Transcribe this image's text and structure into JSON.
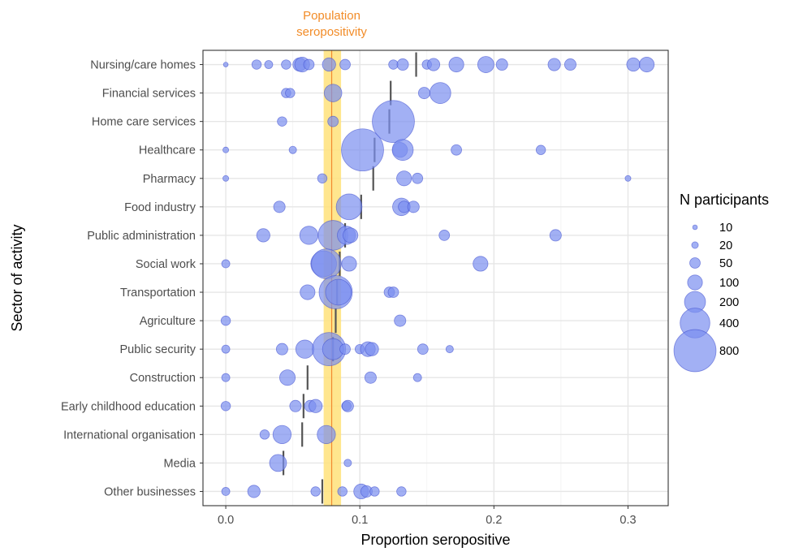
{
  "chart_data": {
    "type": "scatter",
    "annotation": "Population\nseropositivity",
    "xlabel": "Proportion seropositive",
    "ylabel": "Sector of activity",
    "xlim": [
      -0.017,
      0.33
    ],
    "x_ticks": [
      0.0,
      0.1,
      0.2,
      0.3
    ],
    "x_tick_labels": [
      "0.0",
      "0.1",
      "0.2",
      "0.3"
    ],
    "grid": true,
    "population_seropositivity": {
      "value": 0.079,
      "ci": [
        0.073,
        0.086
      ]
    },
    "categories": [
      "Nursing/care homes",
      "Financial services",
      "Home care services",
      "Healthcare",
      "Pharmacy",
      "Food industry",
      "Public administration",
      "Social work",
      "Transportation",
      "Agriculture",
      "Public security",
      "Construction",
      "Early childhood education",
      "International organisation",
      "Media",
      "Other businesses"
    ],
    "sector_means": [
      0.142,
      0.123,
      0.122,
      0.111,
      0.11,
      0.101,
      0.089,
      0.085,
      0.083,
      0.082,
      0.08,
      0.061,
      0.058,
      0.057,
      0.043,
      0.072
    ],
    "points": [
      [
        [
          0,
          10
        ],
        [
          0.023,
          40
        ],
        [
          0.032,
          30
        ],
        [
          0.045,
          40
        ],
        [
          0.055,
          80
        ],
        [
          0.057,
          100
        ],
        [
          0.062,
          50
        ],
        [
          0.077,
          80
        ],
        [
          0.089,
          50
        ],
        [
          0.125,
          40
        ],
        [
          0.132,
          60
        ],
        [
          0.15,
          40
        ],
        [
          0.155,
          70
        ],
        [
          0.172,
          100
        ],
        [
          0.194,
          120
        ],
        [
          0.206,
          60
        ],
        [
          0.245,
          70
        ],
        [
          0.257,
          60
        ],
        [
          0.304,
          80
        ],
        [
          0.314,
          100
        ]
      ],
      [
        [
          0.045,
          40
        ],
        [
          0.048,
          40
        ],
        [
          0.08,
          140
        ],
        [
          0.148,
          60
        ],
        [
          0.16,
          200
        ]
      ],
      [
        [
          0.042,
          40
        ],
        [
          0.08,
          50
        ],
        [
          0.125,
          800
        ]
      ],
      [
        [
          0,
          15
        ],
        [
          0.05,
          25
        ],
        [
          0.102,
          800
        ],
        [
          0.13,
          100
        ],
        [
          0.132,
          200
        ],
        [
          0.172,
          50
        ],
        [
          0.235,
          40
        ]
      ],
      [
        [
          0,
          15
        ],
        [
          0.072,
          40
        ],
        [
          0.133,
          100
        ],
        [
          0.143,
          50
        ],
        [
          0.3,
          15
        ]
      ],
      [
        [
          0.04,
          60
        ],
        [
          0.092,
          300
        ],
        [
          0.131,
          140
        ],
        [
          0.133,
          60
        ],
        [
          0.14,
          60
        ]
      ],
      [
        [
          0.028,
          80
        ],
        [
          0.062,
          150
        ],
        [
          0.08,
          400
        ],
        [
          0.09,
          150
        ],
        [
          0.093,
          100
        ],
        [
          0.163,
          50
        ],
        [
          0.246,
          60
        ]
      ],
      [
        [
          0,
          30
        ],
        [
          0.073,
          300
        ],
        [
          0.075,
          400
        ],
        [
          0.092,
          100
        ],
        [
          0.19,
          100
        ]
      ],
      [
        [
          0.061,
          100
        ],
        [
          0.082,
          500
        ],
        [
          0.084,
          300
        ],
        [
          0.122,
          50
        ],
        [
          0.125,
          50
        ]
      ],
      [
        [
          0,
          40
        ],
        [
          0.13,
          60
        ]
      ],
      [
        [
          0,
          30
        ],
        [
          0.042,
          60
        ],
        [
          0.059,
          150
        ],
        [
          0.077,
          500
        ],
        [
          0.08,
          200
        ],
        [
          0.089,
          50
        ],
        [
          0.1,
          40
        ],
        [
          0.106,
          100
        ],
        [
          0.109,
          80
        ],
        [
          0.147,
          50
        ],
        [
          0.167,
          25
        ]
      ],
      [
        [
          0,
          30
        ],
        [
          0.046,
          110
        ],
        [
          0.108,
          60
        ],
        [
          0.143,
          30
        ]
      ],
      [
        [
          0,
          40
        ],
        [
          0.052,
          60
        ],
        [
          0.063,
          60
        ],
        [
          0.067,
          80
        ],
        [
          0.09,
          40
        ],
        [
          0.091,
          60
        ]
      ],
      [
        [
          0.029,
          40
        ],
        [
          0.042,
          150
        ],
        [
          0.075,
          150
        ]
      ],
      [
        [
          0.039,
          130
        ],
        [
          0.091,
          25
        ]
      ],
      [
        [
          0,
          30
        ],
        [
          0.021,
          70
        ],
        [
          0.067,
          40
        ],
        [
          0.087,
          40
        ],
        [
          0.101,
          100
        ],
        [
          0.105,
          60
        ],
        [
          0.111,
          40
        ],
        [
          0.131,
          40
        ]
      ]
    ],
    "legend": {
      "title": "N participants",
      "position": "right",
      "sizes": [
        10,
        20,
        50,
        100,
        200,
        400,
        800
      ],
      "labels": [
        "10",
        "20",
        "50",
        "100",
        "200",
        "400",
        "800"
      ]
    },
    "colors": {
      "points": "#7b8ff0",
      "point_stroke": "#3f4fcf",
      "band": "#ffe27a",
      "band_line": "#f28a2e",
      "annotation": "#f28c28",
      "mean_bar": "#555555"
    }
  }
}
